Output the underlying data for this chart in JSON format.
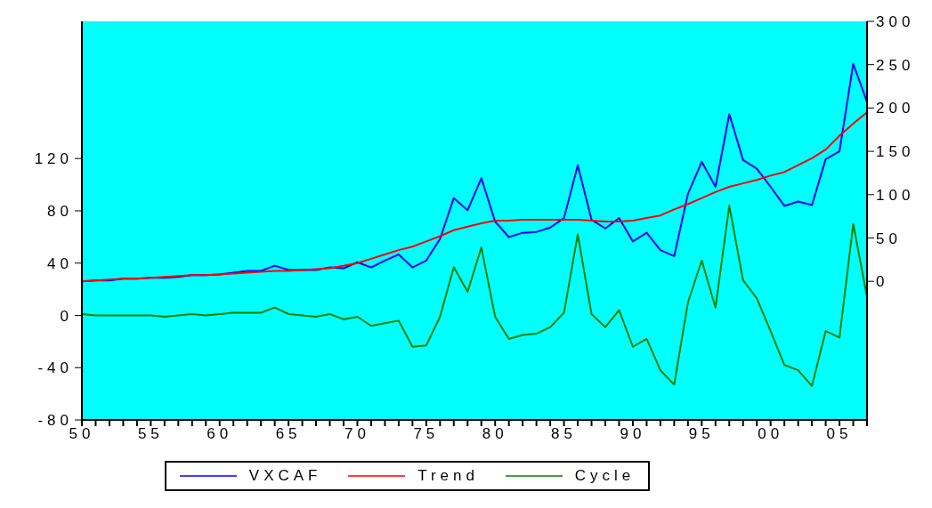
{
  "chart_data": {
    "type": "line",
    "x": [
      1950,
      1951,
      1952,
      1953,
      1954,
      1955,
      1956,
      1957,
      1958,
      1959,
      1960,
      1961,
      1962,
      1963,
      1964,
      1965,
      1966,
      1967,
      1968,
      1969,
      1970,
      1971,
      1972,
      1973,
      1974,
      1975,
      1976,
      1977,
      1978,
      1979,
      1980,
      1981,
      1982,
      1983,
      1984,
      1985,
      1986,
      1987,
      1988,
      1989,
      1990,
      1991,
      1992,
      1993,
      1994,
      1995,
      1996,
      1997,
      1998,
      1999,
      2000,
      2001,
      2002,
      2003,
      2004,
      2005,
      2006,
      2007
    ],
    "series": [
      {
        "name": "VXCAF",
        "color": "#0000ff",
        "axis": "y2",
        "values": [
          0,
          1,
          1,
          3,
          3,
          4,
          4,
          5,
          7,
          7,
          8,
          10,
          12,
          12,
          18,
          13,
          13,
          13,
          16,
          15,
          22,
          16,
          24,
          31,
          16,
          24,
          49,
          96,
          82,
          119,
          69,
          51,
          56,
          57,
          62,
          73,
          134,
          71,
          61,
          73,
          46,
          56,
          36,
          29,
          101,
          138,
          109,
          193,
          140,
          130,
          109,
          87,
          92,
          88,
          141,
          150,
          251,
          207
        ]
      },
      {
        "name": "Trend",
        "color": "#ff0000",
        "axis": "y2",
        "values": [
          0,
          1,
          2,
          3,
          3,
          4,
          5,
          6,
          7,
          7,
          8,
          9,
          10,
          11,
          12,
          12,
          13,
          14,
          15,
          18,
          21,
          26,
          31,
          36,
          40,
          46,
          52,
          59,
          63,
          67,
          70,
          70,
          71,
          71,
          71,
          71,
          71,
          70,
          69,
          69,
          70,
          73,
          76,
          83,
          89,
          96,
          103,
          109,
          113,
          117,
          122,
          126,
          134,
          142,
          152,
          168,
          182,
          195
        ]
      },
      {
        "name": "Cycle",
        "color": "#008000",
        "values": [
          1,
          0,
          0,
          0,
          0,
          0,
          -1,
          0,
          1,
          0,
          1,
          2,
          2,
          2,
          6,
          1,
          0,
          -1,
          1,
          -3,
          -1,
          -8,
          -6,
          -4,
          -24,
          -23,
          -1,
          37,
          18,
          52,
          -1,
          -18,
          -15,
          -14,
          -9,
          2,
          62,
          1,
          -9,
          4,
          -24,
          -18,
          -42,
          -53,
          10,
          42,
          6,
          84,
          27,
          13,
          -12,
          -38,
          -42,
          -54,
          -12,
          -17,
          70,
          14
        ]
      }
    ],
    "xlim": [
      1950,
      2007
    ],
    "xticks": [
      {
        "value": 1950,
        "label": "50"
      },
      {
        "value": 1951,
        "label": null
      },
      {
        "value": 1952,
        "label": null
      },
      {
        "value": 1953,
        "label": null
      },
      {
        "value": 1954,
        "label": null
      },
      {
        "value": 1955,
        "label": "55"
      },
      {
        "value": 1956,
        "label": null
      },
      {
        "value": 1957,
        "label": null
      },
      {
        "value": 1958,
        "label": null
      },
      {
        "value": 1959,
        "label": null
      },
      {
        "value": 1960,
        "label": "60"
      },
      {
        "value": 1961,
        "label": null
      },
      {
        "value": 1962,
        "label": null
      },
      {
        "value": 1963,
        "label": null
      },
      {
        "value": 1964,
        "label": null
      },
      {
        "value": 1965,
        "label": "65"
      },
      {
        "value": 1966,
        "label": null
      },
      {
        "value": 1967,
        "label": null
      },
      {
        "value": 1968,
        "label": null
      },
      {
        "value": 1969,
        "label": null
      },
      {
        "value": 1970,
        "label": "70"
      },
      {
        "value": 1971,
        "label": null
      },
      {
        "value": 1972,
        "label": null
      },
      {
        "value": 1973,
        "label": null
      },
      {
        "value": 1974,
        "label": null
      },
      {
        "value": 1975,
        "label": "75"
      },
      {
        "value": 1976,
        "label": null
      },
      {
        "value": 1977,
        "label": null
      },
      {
        "value": 1978,
        "label": null
      },
      {
        "value": 1979,
        "label": null
      },
      {
        "value": 1980,
        "label": "80"
      },
      {
        "value": 1981,
        "label": null
      },
      {
        "value": 1982,
        "label": null
      },
      {
        "value": 1983,
        "label": null
      },
      {
        "value": 1984,
        "label": null
      },
      {
        "value": 1985,
        "label": "85"
      },
      {
        "value": 1986,
        "label": null
      },
      {
        "value": 1987,
        "label": null
      },
      {
        "value": 1988,
        "label": null
      },
      {
        "value": 1989,
        "label": null
      },
      {
        "value": 1990,
        "label": "90"
      },
      {
        "value": 1991,
        "label": null
      },
      {
        "value": 1992,
        "label": null
      },
      {
        "value": 1993,
        "label": null
      },
      {
        "value": 1994,
        "label": null
      },
      {
        "value": 1995,
        "label": "95"
      },
      {
        "value": 1996,
        "label": null
      },
      {
        "value": 1997,
        "label": null
      },
      {
        "value": 1998,
        "label": null
      },
      {
        "value": 1999,
        "label": null
      },
      {
        "value": 2000,
        "label": "00"
      },
      {
        "value": 2001,
        "label": null
      },
      {
        "value": 2002,
        "label": null
      },
      {
        "value": 2003,
        "label": null
      },
      {
        "value": 2004,
        "label": null
      },
      {
        "value": 2005,
        "label": "05"
      },
      {
        "value": 2006,
        "label": null
      },
      {
        "value": 2007,
        "label": null
      }
    ],
    "ylim": [
      -80,
      225
    ],
    "yticks": [
      -80,
      -40,
      0,
      40,
      80,
      120
    ],
    "y2lim": [
      -160,
      300
    ],
    "y2ticks": [
      0,
      50,
      100,
      150,
      200,
      250,
      300
    ],
    "legend": "bottom",
    "grid": false,
    "marker": "none",
    "line_style": "solid"
  }
}
